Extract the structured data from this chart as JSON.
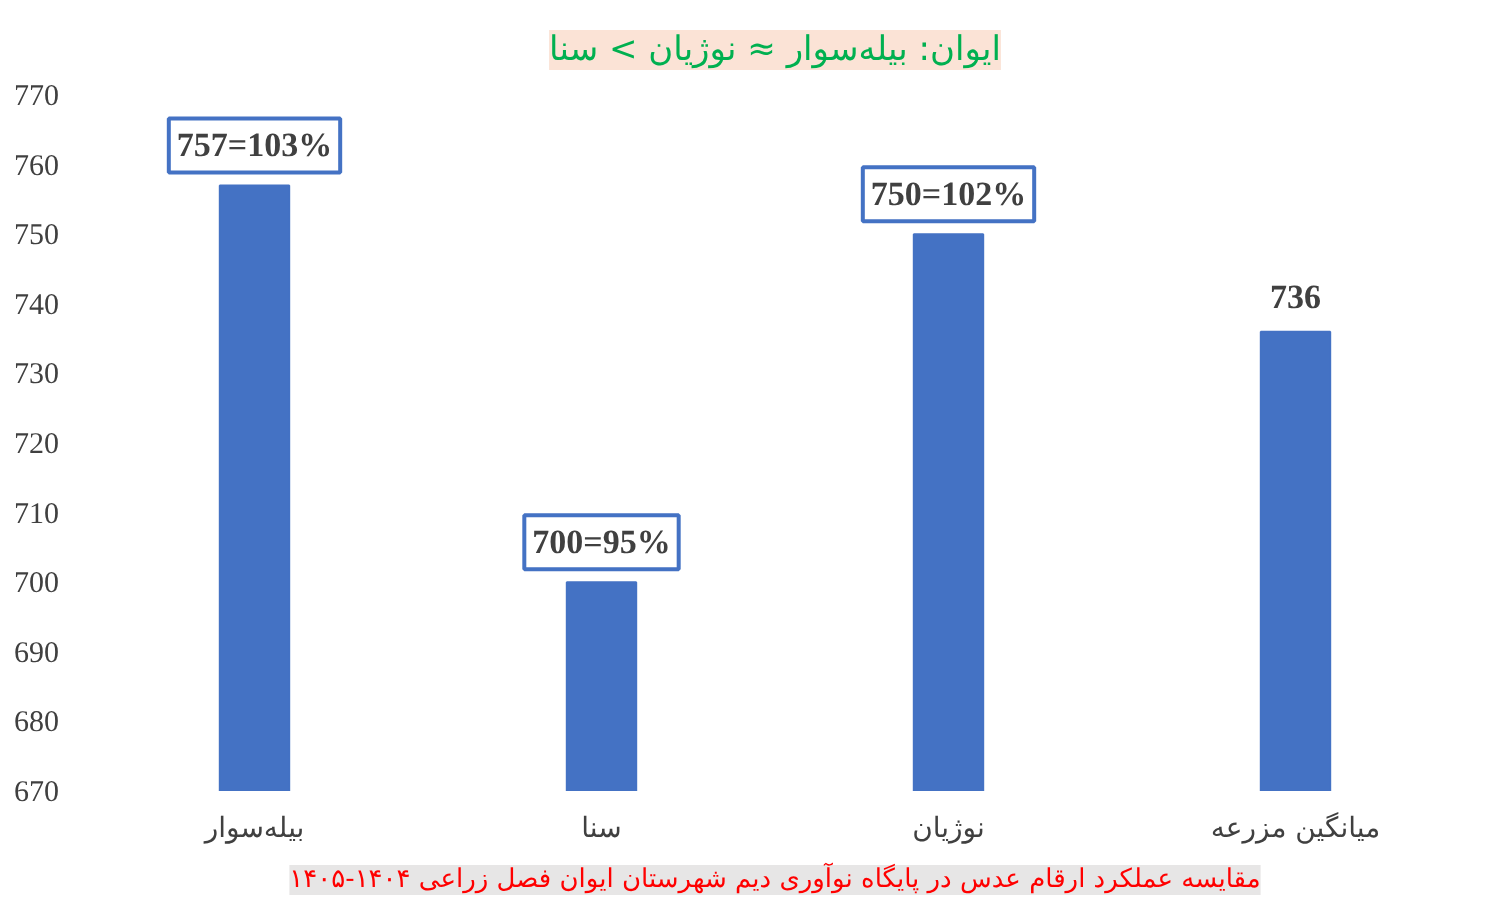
{
  "chart_data": {
    "type": "bar",
    "title": "ایوان: بیله‌سوار ≈ نوژیان > سنا",
    "categories": [
      "بیله‌سوار",
      "سنا",
      "نوژیان",
      "میانگین مزرعه"
    ],
    "values": [
      757,
      700,
      750,
      736
    ],
    "value_labels": [
      "757=103%",
      "700=95%",
      "750=102%",
      "736"
    ],
    "color": "#4472c4",
    "ylim": [
      670,
      770
    ],
    "yticks": [
      670,
      680,
      690,
      700,
      710,
      720,
      730,
      740,
      750,
      760,
      770
    ],
    "grid": false,
    "annotations": [
      "مقایسه عملکرد ارقام عدس در پایگاه نوآوری دیم شهرستان ایوان فصل زراعی ۱۴۰۴-۱۴۰۵"
    ]
  }
}
